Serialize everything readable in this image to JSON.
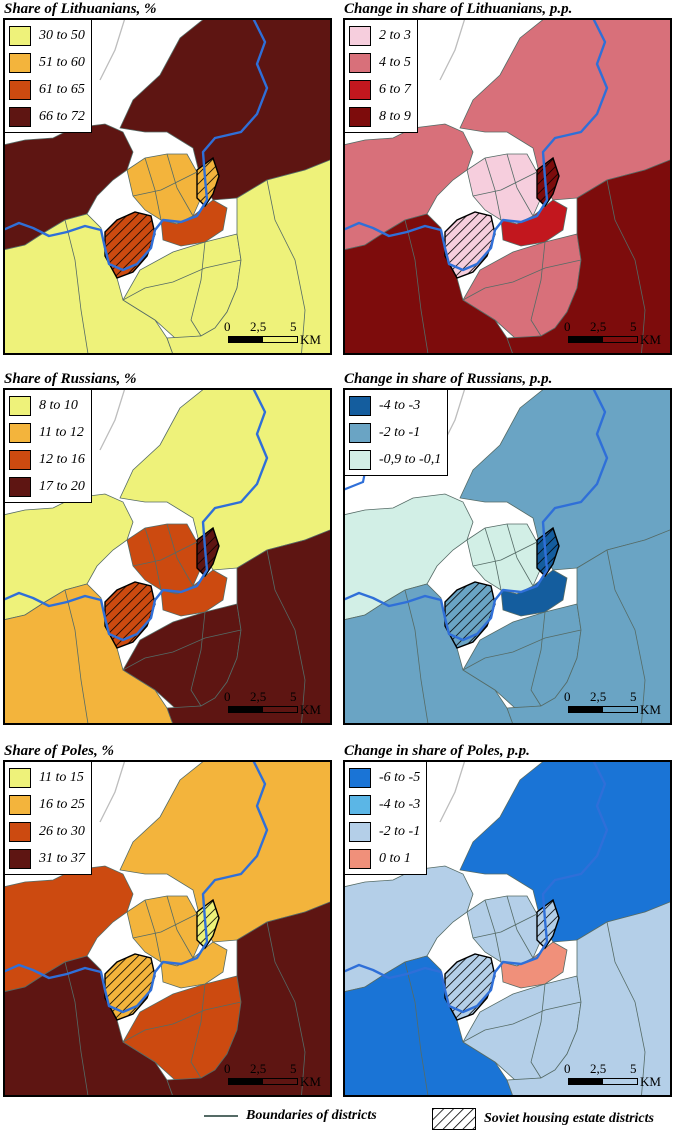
{
  "panels": [
    {
      "id": "lit-share",
      "title": "Share of Lithuanians, %",
      "legend": [
        {
          "label": "30 to 50",
          "color": "#eef27a"
        },
        {
          "label": "51 to 60",
          "color": "#f3b43c"
        },
        {
          "label": "61 to 65",
          "color": "#cc4a10"
        },
        {
          "label": "66 to 72",
          "color": "#5e1512"
        }
      ],
      "region_classes": {
        "north": 3,
        "west": 3,
        "southwest": 0,
        "south": 0,
        "east": 0,
        "center": 1,
        "hatchA": 2,
        "hatchB": 1,
        "inner": 2
      }
    },
    {
      "id": "lit-change",
      "title": "Change in share of Lithuanians, p.p.",
      "legend": [
        {
          "label": "2 to 3",
          "color": "#f6cedd"
        },
        {
          "label": "4 to 5",
          "color": "#d8707a"
        },
        {
          "label": "6 to 7",
          "color": "#c2171e"
        },
        {
          "label": "8 to 9",
          "color": "#7d0c0c"
        }
      ],
      "region_classes": {
        "north": 1,
        "west": 1,
        "southwest": 3,
        "south": 1,
        "east": 3,
        "center": 0,
        "hatchA": 0,
        "hatchB": 3,
        "inner": 2
      }
    },
    {
      "id": "rus-share",
      "title": "Share of Russians, %",
      "legend": [
        {
          "label": "8 to 10",
          "color": "#eef27a"
        },
        {
          "label": "11 to 12",
          "color": "#f3b43c"
        },
        {
          "label": "12 to 16",
          "color": "#cc4a10"
        },
        {
          "label": "17 to 20",
          "color": "#5e1512"
        }
      ],
      "region_classes": {
        "north": 0,
        "west": 0,
        "southwest": 1,
        "south": 3,
        "east": 3,
        "center": 2,
        "hatchA": 2,
        "hatchB": 3,
        "inner": 2
      }
    },
    {
      "id": "rus-change",
      "title": "Change in share of Russians, p.p.",
      "legend": [
        {
          "label": "-4 to -3",
          "color": "#145d9e"
        },
        {
          "label": "-2 to -1",
          "color": "#6aa4c4"
        },
        {
          "label": "-0,9 to -0,1",
          "color": "#d2efe6"
        }
      ],
      "region_classes": {
        "north": 1,
        "west": 2,
        "southwest": 1,
        "south": 1,
        "east": 1,
        "center": 2,
        "hatchA": 1,
        "hatchB": 0,
        "inner": 0
      }
    },
    {
      "id": "pol-share",
      "title": "Share of Poles, %",
      "legend": [
        {
          "label": "11 to 15",
          "color": "#eef27a"
        },
        {
          "label": "16 to 25",
          "color": "#f3b43c"
        },
        {
          "label": "26 to 30",
          "color": "#cc4a10"
        },
        {
          "label": "31 to 37",
          "color": "#5e1512"
        }
      ],
      "region_classes": {
        "north": 1,
        "west": 2,
        "southwest": 3,
        "south": 2,
        "east": 3,
        "center": 1,
        "hatchA": 1,
        "hatchB": 0,
        "inner": 1
      }
    },
    {
      "id": "pol-change",
      "title": "Change in share of Poles, p.p.",
      "legend": [
        {
          "label": "-6 to -5",
          "color": "#1a74d6"
        },
        {
          "label": "-4 to -3",
          "color": "#5bb6e6"
        },
        {
          "label": "-2 to -1",
          "color": "#b4cfe8"
        },
        {
          "label": "0 to 1",
          "color": "#f0907a"
        }
      ],
      "region_classes": {
        "north": 0,
        "west": 2,
        "southwest": 0,
        "south": 2,
        "east": 2,
        "center": 2,
        "hatchA": 2,
        "hatchB": 2,
        "inner": 3
      }
    }
  ],
  "scale": {
    "ticks": [
      "0",
      "2,5",
      "5"
    ],
    "unit": "KM"
  },
  "footer": {
    "boundaries_label": "Boundaries of districts",
    "soviet_label": "Soviet housing estate districts"
  },
  "colors": {
    "river": "#2f6fd8",
    "boundary": "#556b66",
    "background_roads": "#bdbdbd"
  }
}
